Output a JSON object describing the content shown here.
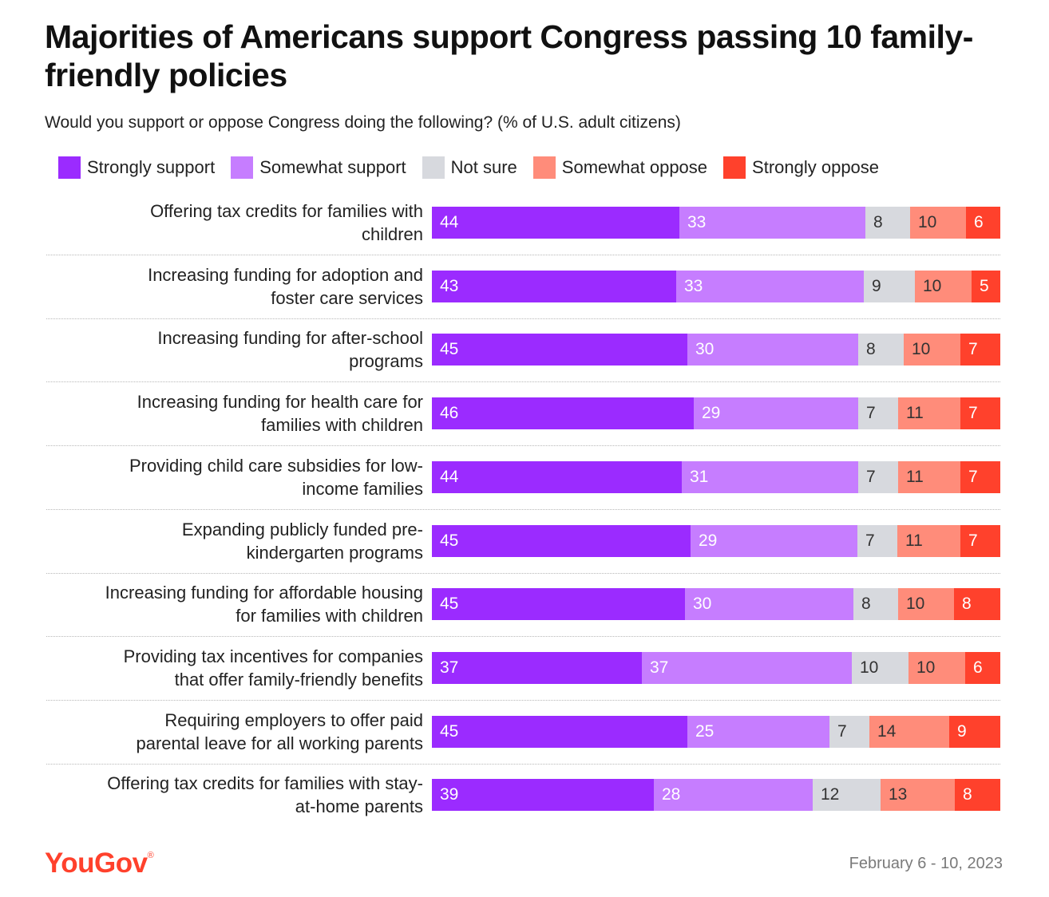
{
  "title": "Majorities of Americans support Congress passing 10 family-friendly policies",
  "subtitle": "Would you support or oppose Congress doing the following? (% of U.S. adult citizens)",
  "brand": {
    "logo_text": "YouGov",
    "registered_mark": "®"
  },
  "date_range": "February 6 - 10, 2023",
  "colors": {
    "strongly_support": "#9b2bff",
    "somewhat_support": "#c67dff",
    "not_sure": "#d7d9de",
    "somewhat_oppose": "#ff8c7a",
    "strongly_oppose": "#ff412c",
    "logo": "#ff412c"
  },
  "chart_data": {
    "type": "bar",
    "orientation": "horizontal",
    "stacked": true,
    "title": "Majorities of Americans support Congress passing 10 family-friendly policies",
    "subtitle": "Would you support or oppose Congress doing the following? (% of U.S. adult citizens)",
    "legend_position": "top",
    "grid": false,
    "categories": [
      "Offering tax credits for families with children",
      "Increasing funding for adoption and foster care services",
      "Increasing funding for after-school programs",
      "Increasing funding for health care for families with children",
      "Providing child care subsidies for low-income families",
      "Expanding publicly funded pre-kindergarten programs",
      "Increasing funding for affordable housing for families with children",
      "Providing tax incentives for companies that offer family-friendly benefits",
      "Requiring employers to offer paid parental leave for all working parents",
      "Offering tax credits for families with stay-at-home parents"
    ],
    "category_lines": [
      [
        "Offering tax credits for families with",
        "children"
      ],
      [
        "Increasing funding for adoption and",
        "foster care services"
      ],
      [
        "Increasing funding for after-school",
        "programs"
      ],
      [
        "Increasing funding for health care for",
        "families with children"
      ],
      [
        "Providing child care subsidies for low-",
        "income families"
      ],
      [
        "Expanding publicly funded pre-",
        "kindergarten programs"
      ],
      [
        "Increasing funding for affordable housing",
        "for families with children"
      ],
      [
        "Providing tax incentives for companies",
        "that offer family-friendly benefits"
      ],
      [
        "Requiring employers to offer paid",
        "parental leave for all working parents"
      ],
      [
        "Offering tax credits for families with stay-",
        "at-home parents"
      ]
    ],
    "series": [
      {
        "name": "Strongly support",
        "color": "#9b2bff",
        "values": [
          44,
          43,
          45,
          46,
          44,
          45,
          45,
          37,
          45,
          39
        ]
      },
      {
        "name": "Somewhat support",
        "color": "#c67dff",
        "values": [
          33,
          33,
          30,
          29,
          31,
          29,
          30,
          37,
          25,
          28
        ]
      },
      {
        "name": "Not sure",
        "color": "#d7d9de",
        "values": [
          8,
          9,
          8,
          7,
          7,
          7,
          8,
          10,
          7,
          12
        ]
      },
      {
        "name": "Somewhat oppose",
        "color": "#ff8c7a",
        "values": [
          10,
          10,
          10,
          11,
          11,
          11,
          10,
          10,
          14,
          13
        ]
      },
      {
        "name": "Strongly oppose",
        "color": "#ff412c",
        "values": [
          6,
          5,
          7,
          7,
          7,
          7,
          8,
          6,
          9,
          8
        ]
      }
    ]
  }
}
